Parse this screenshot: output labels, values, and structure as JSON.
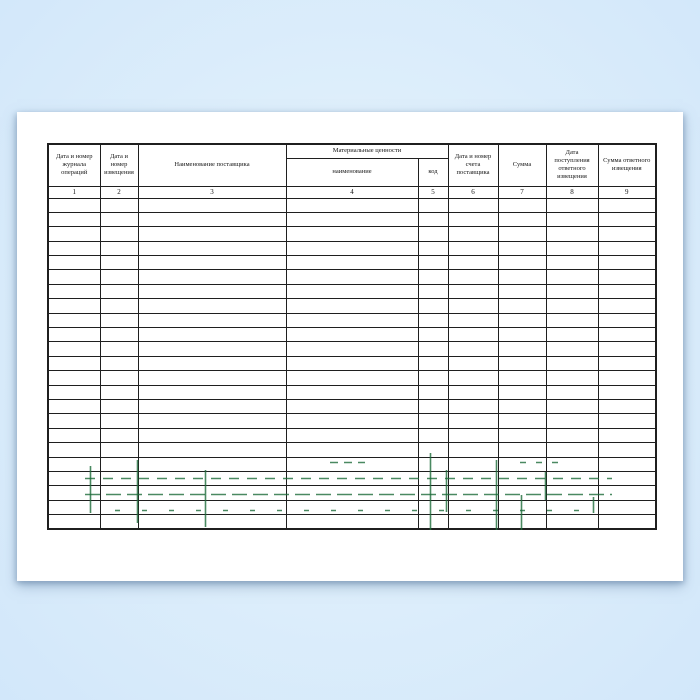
{
  "colors": {
    "background_blue": "#d5e8fa",
    "paper_white": "#ffffff",
    "line_dark": "#1f1f1f",
    "watermark_green": "#1d6b39"
  },
  "form": {
    "kind": "blank-ledger-form-scan",
    "table": {
      "group_header": "Материальные ценности",
      "columns": [
        {
          "num": "1",
          "label": "Дата и номер журнала операций"
        },
        {
          "num": "2",
          "label": "Дата и номер извещения"
        },
        {
          "num": "3",
          "label": "Наименование поставщика"
        },
        {
          "num": "4",
          "label": "наименование"
        },
        {
          "num": "5",
          "label": "код"
        },
        {
          "num": "6",
          "label": "Дата и номер счета поставщика"
        },
        {
          "num": "7",
          "label": "Сумма"
        },
        {
          "num": "8",
          "label": "Дата поступления ответного извещения"
        },
        {
          "num": "9",
          "label": "Сумма ответного извещения"
        }
      ],
      "body_row_count": 23,
      "body_cells_value": ""
    }
  }
}
